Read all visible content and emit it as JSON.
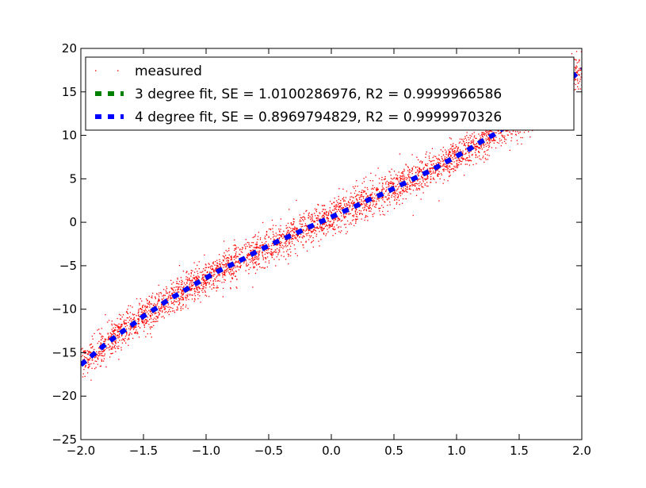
{
  "chart_data": {
    "type": "scatter",
    "title": "",
    "xlabel": "",
    "ylabel": "",
    "xlim": [
      -2.0,
      2.0
    ],
    "ylim": [
      -25,
      20
    ],
    "xticks": [
      -2.0,
      -1.5,
      -1.0,
      -0.5,
      0.0,
      0.5,
      1.0,
      1.5,
      2.0
    ],
    "xtick_labels": [
      "−2.0",
      "−1.5",
      "−1.0",
      "−0.5",
      "0.0",
      "0.5",
      "1.0",
      "1.5",
      "2.0"
    ],
    "yticks": [
      20,
      15,
      10,
      5,
      0,
      -5,
      -10,
      -15,
      -20,
      -25
    ],
    "ytick_labels": [
      "20",
      "15",
      "10",
      "5",
      "0",
      "−5",
      "−10",
      "−15",
      "−20",
      "−25"
    ],
    "grid": false,
    "legend_position": "top-left",
    "measured": {
      "name": "measured",
      "color": "#ff0000",
      "x_range": [
        -2.0,
        2.0
      ],
      "approx_curve": {
        "a0": 0.6,
        "a1": 6.5,
        "a2": 0.0,
        "a3": 0.5
      },
      "noise_sd": 1.0,
      "n_points": 4000
    },
    "fits": [
      {
        "name": "3 degree fit, SE = 1.0100286976, R2 = 0.9999966586",
        "color": "#008000",
        "style": "dashed",
        "coefficients": [
          0.6,
          6.5,
          0.0,
          0.5
        ],
        "x": [
          -2.0,
          -1.9,
          -1.8,
          -1.7,
          -1.6,
          -1.5,
          -1.4,
          -1.3,
          -1.2,
          -1.1,
          -1.0,
          -0.9,
          -0.8,
          -0.7,
          -0.6,
          -0.5,
          -0.4,
          -0.3,
          -0.2,
          -0.1,
          0.0,
          0.1,
          0.2,
          0.3,
          0.4,
          0.5,
          0.6,
          0.7,
          0.8,
          0.9,
          1.0,
          1.1,
          1.2,
          1.3,
          1.4,
          1.5,
          1.6,
          1.7,
          1.8,
          1.9,
          2.0
        ],
        "y": [
          -16.4,
          -15.2,
          -14.0,
          -12.9,
          -11.9,
          -10.8,
          -9.9,
          -8.9,
          -8.1,
          -7.2,
          -6.4,
          -5.6,
          -4.9,
          -4.2,
          -3.4,
          -2.7,
          -2.0,
          -1.4,
          -0.7,
          -0.05,
          0.6,
          1.25,
          1.9,
          2.6,
          3.2,
          3.9,
          4.6,
          5.3,
          6.0,
          6.8,
          7.6,
          8.4,
          9.3,
          10.1,
          11.1,
          12.0,
          13.1,
          14.1,
          15.2,
          16.4,
          17.6
        ]
      },
      {
        "name": "4 degree fit, SE = 0.8969794829, R2 = 0.9999970326",
        "color": "#0000ff",
        "style": "dashed",
        "coefficients": [
          0.6,
          6.5,
          0.0,
          0.5
        ],
        "x": [
          -2.0,
          -1.9,
          -1.8,
          -1.7,
          -1.6,
          -1.5,
          -1.4,
          -1.3,
          -1.2,
          -1.1,
          -1.0,
          -0.9,
          -0.8,
          -0.7,
          -0.6,
          -0.5,
          -0.4,
          -0.3,
          -0.2,
          -0.1,
          0.0,
          0.1,
          0.2,
          0.3,
          0.4,
          0.5,
          0.6,
          0.7,
          0.8,
          0.9,
          1.0,
          1.1,
          1.2,
          1.3,
          1.4,
          1.5,
          1.6,
          1.7,
          1.8,
          1.9,
          2.0
        ],
        "y": [
          -16.4,
          -15.2,
          -14.0,
          -12.9,
          -11.9,
          -10.8,
          -9.9,
          -8.9,
          -8.1,
          -7.2,
          -6.4,
          -5.6,
          -4.9,
          -4.2,
          -3.4,
          -2.7,
          -2.0,
          -1.4,
          -0.7,
          -0.05,
          0.6,
          1.25,
          1.9,
          2.6,
          3.2,
          3.9,
          4.6,
          5.3,
          6.0,
          6.8,
          7.6,
          8.4,
          9.3,
          10.1,
          11.1,
          12.0,
          13.1,
          14.1,
          15.2,
          16.4,
          17.6
        ]
      }
    ]
  }
}
